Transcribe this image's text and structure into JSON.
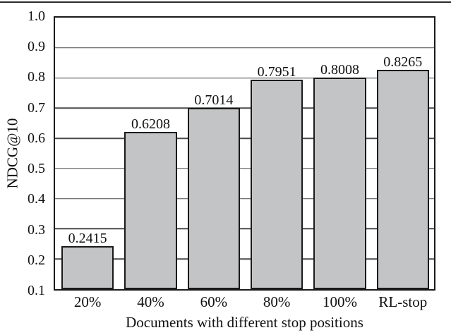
{
  "chart_data": {
    "type": "bar",
    "title": "",
    "xlabel": "Documents with different stop positions",
    "ylabel": "NDCG@10",
    "categories": [
      "20%",
      "40%",
      "60%",
      "80%",
      "100%",
      "RL-stop"
    ],
    "values": [
      0.2415,
      0.6208,
      0.7014,
      0.7951,
      0.8008,
      0.8265
    ],
    "value_labels": [
      "0.2415",
      "0.6208",
      "0.7014",
      "0.7951",
      "0.8008",
      "0.8265"
    ],
    "ylim": [
      0.1,
      1.0
    ],
    "yticks": [
      "1.0",
      "0.9",
      "0.8",
      "0.7",
      "0.6",
      "0.5",
      "0.4",
      "0.3",
      "0.2",
      "0.1"
    ],
    "grid": "horizontal",
    "legend": "none",
    "colors": {
      "bar_fill": "#c2c4c6",
      "bar_border": "#1a1a1a",
      "grid_line": "#4a4a4a",
      "frame": "#1a1a1a",
      "background": "#ffffff",
      "text": "#111111"
    }
  }
}
